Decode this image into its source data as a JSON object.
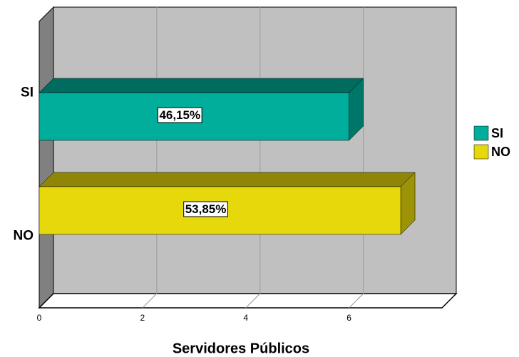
{
  "chart_data": {
    "type": "bar3d-horizontal",
    "x_label": "Servidores Públicos",
    "categories": [
      "SI",
      "NO"
    ],
    "values": [
      6,
      7
    ],
    "percentages": [
      46.15,
      53.85
    ],
    "percentage_labels": [
      "46,15%",
      "53,85%"
    ],
    "colors": [
      "#00ae9b",
      "#e6d80b"
    ],
    "xlim": [
      0,
      7.8
    ],
    "xticks": [
      0,
      2,
      4,
      6
    ],
    "grid": true,
    "legend": "right"
  }
}
